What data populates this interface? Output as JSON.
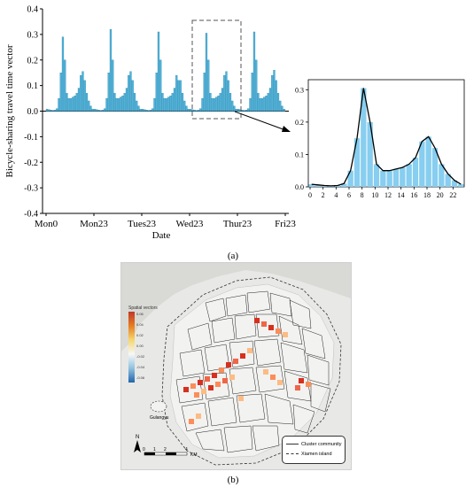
{
  "colors": {
    "bar_fill": "#4fb3d9",
    "bar_edge": "#2a7fa8",
    "inset_bar_fill": "#87cef0",
    "line": "#000000",
    "map_cluster_hot": "#d7301f",
    "map_cluster_warm": "#fc8d59"
  },
  "chart_data": [
    {
      "type": "bar",
      "panel": "a-main",
      "ylabel": "Bicycle-sharing travel time vector",
      "xlabel": "Date",
      "ylim": [
        -0.4,
        0.4
      ],
      "yticks": [
        "0.4",
        "0.3",
        "0.2",
        "0.1",
        "0.0",
        "-0.1",
        "-0.2",
        "-0.3",
        "-0.4"
      ],
      "xtick_labels": [
        "Mon0",
        "Mon23",
        "Tues23",
        "Wed23",
        "Thur23",
        "Fri23"
      ],
      "hours": 120,
      "daily_profile": [
        0.008,
        0.006,
        0.004,
        0.003,
        0.004,
        0.01,
        0.05,
        0.15,
        0.3,
        0.2,
        0.07,
        0.05,
        0.05,
        0.055,
        0.06,
        0.07,
        0.09,
        0.14,
        0.155,
        0.12,
        0.07,
        0.04,
        0.02,
        0.008
      ],
      "daily_peaks": [
        0.29,
        0.32,
        0.31,
        0.305,
        0.31
      ],
      "daily_evening_peaks": [
        0.155,
        0.155,
        0.12,
        0.155,
        0.16
      ],
      "grid": false,
      "highlight_day": "Thur23"
    },
    {
      "type": "bar",
      "panel": "a-inset",
      "x": [
        0,
        1,
        2,
        3,
        4,
        5,
        6,
        7,
        8,
        9,
        10,
        11,
        12,
        13,
        14,
        15,
        16,
        17,
        18,
        19,
        20,
        21,
        22,
        23
      ],
      "values": [
        0.008,
        0.006,
        0.004,
        0.003,
        0.004,
        0.01,
        0.05,
        0.15,
        0.305,
        0.2,
        0.07,
        0.05,
        0.05,
        0.055,
        0.06,
        0.07,
        0.09,
        0.14,
        0.155,
        0.12,
        0.07,
        0.04,
        0.02,
        0.008
      ],
      "ylim": [
        0,
        0.32
      ],
      "yticks": [
        "0.3",
        "0.2",
        "0.1",
        "0.0"
      ],
      "xticks": [
        "0",
        "2",
        "4",
        "6",
        "8",
        "10",
        "12",
        "14",
        "16",
        "18",
        "20",
        "22"
      ],
      "grid": false
    }
  ],
  "captions": {
    "panel_a": "(a)",
    "panel_b": "(b)"
  },
  "map": {
    "colorbar_title": "Spatial vectors",
    "colorbar_ticks": [
      "0.06",
      "0.04",
      "0.02",
      "0.00",
      "-0.02",
      "-0.04",
      "-0.06"
    ],
    "legend": {
      "cluster": "Cluster community",
      "island": "Xiamen island"
    },
    "place_label": "Gulangyu",
    "scale_ticks": [
      "0",
      "1",
      "2",
      "4"
    ],
    "scale_unit": "KM",
    "north": "N"
  }
}
